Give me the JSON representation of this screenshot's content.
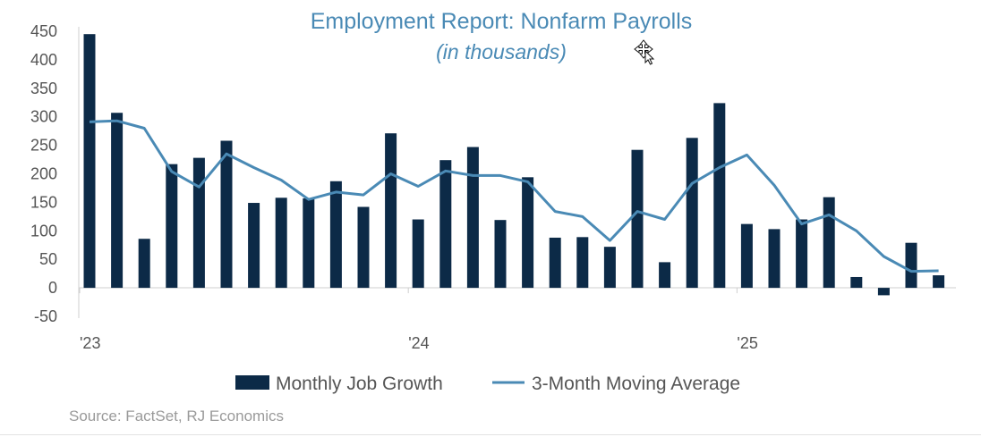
{
  "chart_data": {
    "type": "bar",
    "title": "Employment Report: Nonfarm Payrolls",
    "subtitle": "(in thousands)",
    "xlabel": "",
    "ylabel": "",
    "ylim": [
      -50,
      450
    ],
    "yticks": [
      -50,
      0,
      50,
      100,
      150,
      200,
      250,
      300,
      350,
      400,
      450
    ],
    "x_tick_labels": [
      {
        "label": "'23",
        "index": 0
      },
      {
        "label": "'24",
        "index": 12
      },
      {
        "label": "'25",
        "index": 24
      }
    ],
    "categories": [
      "Jan 2023",
      "Feb 2023",
      "Mar 2023",
      "Apr 2023",
      "May 2023",
      "Jun 2023",
      "Jul 2023",
      "Aug 2023",
      "Sep 2023",
      "Oct 2023",
      "Nov 2023",
      "Dec 2023",
      "Jan 2024",
      "Feb 2024",
      "Mar 2024",
      "Apr 2024",
      "May 2024",
      "Jun 2024",
      "Jul 2024",
      "Aug 2024",
      "Sep 2024",
      "Oct 2024",
      "Nov 2024",
      "Dec 2024",
      "Jan 2025",
      "Feb 2025",
      "Mar 2025",
      "Apr 2025",
      "May 2025",
      "Jun 2025",
      "Jul 2025",
      "Aug 2025"
    ],
    "series": [
      {
        "name": "Monthly Job Growth",
        "kind": "bar",
        "color": "#0c2a47",
        "values": [
          445,
          307,
          86,
          217,
          228,
          258,
          149,
          158,
          157,
          187,
          142,
          271,
          120,
          224,
          247,
          119,
          194,
          88,
          89,
          72,
          242,
          45,
          263,
          324,
          112,
          103,
          120,
          159,
          19,
          -13,
          79,
          22
        ]
      },
      {
        "name": "3-Month Moving Average",
        "kind": "line",
        "color": "#4a8ab5",
        "values": [
          291,
          293,
          280,
          204,
          177,
          235,
          211,
          189,
          155,
          168,
          163,
          200,
          178,
          205,
          197,
          197,
          186,
          134,
          125,
          83,
          134,
          120,
          183,
          211,
          233,
          180,
          112,
          128,
          100,
          55,
          29,
          30
        ]
      }
    ],
    "legend": {
      "placement": "bottom"
    },
    "grid": false,
    "source": "Source: FactSet, RJ Economics"
  }
}
